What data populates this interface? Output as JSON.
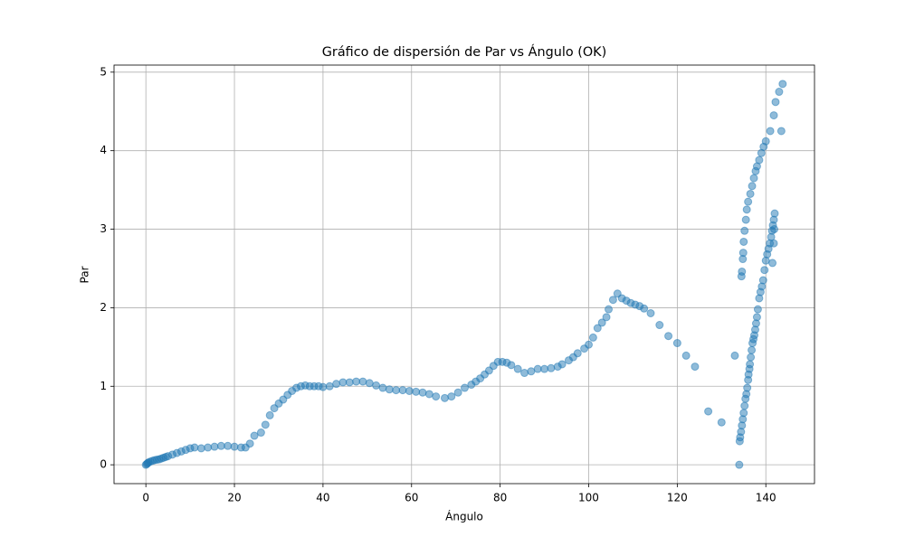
{
  "chart_data": {
    "type": "scatter",
    "title": "Gráfico de dispersión de Par vs Ángulo (OK)",
    "x_label": "Ángulo",
    "y_label": "Par",
    "color": "#1f77b4",
    "alpha": 0.5,
    "grid": true,
    "xlim": [
      -7.19,
      150.99
    ],
    "ylim": [
      -0.24,
      5.09
    ],
    "xticks": [
      0,
      20,
      40,
      60,
      80,
      100,
      120,
      140
    ],
    "yticks": [
      0,
      1,
      2,
      3,
      4,
      5
    ],
    "x": [
      0,
      0.2,
      0.4,
      0.6,
      1,
      1.5,
      2,
      2.5,
      3,
      3.5,
      4,
      4.5,
      5,
      6,
      7,
      8,
      9,
      10,
      11,
      12.5,
      14,
      15.5,
      17,
      18.5,
      20,
      21.5,
      22.5,
      23.5,
      24.5,
      26,
      27,
      28,
      29,
      30,
      31,
      32,
      33,
      34,
      35,
      36,
      37,
      38,
      39,
      40,
      41.5,
      43,
      44.5,
      46,
      47.5,
      49,
      50.5,
      52,
      53.5,
      55,
      56.5,
      58,
      59.5,
      61,
      62.5,
      64,
      65.5,
      67.5,
      69,
      70.5,
      72,
      73.5,
      74.5,
      75.5,
      76.5,
      77.5,
      78.5,
      79.5,
      80.5,
      81.5,
      82.5,
      84,
      85.5,
      87,
      88.5,
      90,
      91.5,
      93,
      94,
      95.5,
      96.5,
      97.5,
      99,
      100,
      101,
      102,
      103,
      104,
      104.5,
      105.5,
      106.5,
      107.5,
      108.5,
      109.5,
      110.5,
      111.5,
      112.5,
      114,
      116,
      118,
      120,
      122,
      124,
      127,
      130,
      133,
      134,
      134.1,
      134.2,
      134.4,
      134.6,
      134.8,
      135,
      135.2,
      135.4,
      135.6,
      135.8,
      136,
      136.1,
      136.3,
      136.4,
      136.6,
      136.8,
      137,
      137.2,
      137.4,
      137.6,
      137.8,
      138,
      138.2,
      138.5,
      138.8,
      139.1,
      139.4,
      139.7,
      140,
      140.3,
      140.6,
      140.9,
      141.2,
      141.4,
      141.6,
      141.8,
      142,
      141.9,
      141.8,
      141.5,
      134.5,
      134.6,
      134.8,
      134.9,
      135,
      135.2,
      135.5,
      135.7,
      136,
      136.5,
      136.9,
      137.3,
      137.7,
      138,
      138.5,
      139,
      139.5,
      140,
      141,
      141.8,
      142.2,
      143,
      143.8,
      143.5
    ],
    "y": [
      0,
      0.01,
      0.02,
      0.03,
      0.04,
      0.05,
      0.06,
      0.065,
      0.07,
      0.08,
      0.09,
      0.1,
      0.11,
      0.13,
      0.15,
      0.17,
      0.19,
      0.21,
      0.22,
      0.21,
      0.22,
      0.23,
      0.24,
      0.24,
      0.23,
      0.22,
      0.22,
      0.27,
      0.37,
      0.41,
      0.51,
      0.63,
      0.72,
      0.78,
      0.83,
      0.89,
      0.94,
      0.98,
      1.0,
      1.01,
      1.0,
      1.0,
      1.0,
      0.99,
      1.0,
      1.03,
      1.05,
      1.05,
      1.06,
      1.06,
      1.04,
      1.01,
      0.98,
      0.96,
      0.95,
      0.95,
      0.94,
      0.93,
      0.92,
      0.9,
      0.87,
      0.85,
      0.87,
      0.92,
      0.98,
      1.02,
      1.06,
      1.1,
      1.15,
      1.2,
      1.26,
      1.31,
      1.31,
      1.3,
      1.27,
      1.22,
      1.17,
      1.19,
      1.22,
      1.22,
      1.23,
      1.25,
      1.28,
      1.33,
      1.37,
      1.42,
      1.48,
      1.53,
      1.62,
      1.74,
      1.81,
      1.88,
      1.98,
      2.1,
      2.18,
      2.12,
      2.09,
      2.06,
      2.04,
      2.02,
      1.99,
      1.93,
      1.78,
      1.64,
      1.55,
      1.39,
      1.25,
      0.68,
      0.54,
      1.39,
      0,
      0.3,
      0.35,
      0.42,
      0.5,
      0.58,
      0.66,
      0.75,
      0.84,
      0.9,
      0.98,
      1.08,
      1.15,
      1.22,
      1.28,
      1.37,
      1.46,
      1.55,
      1.6,
      1.65,
      1.72,
      1.8,
      1.88,
      1.98,
      2.12,
      2.2,
      2.27,
      2.35,
      2.48,
      2.6,
      2.68,
      2.75,
      2.82,
      2.9,
      2.98,
      3.05,
      3.12,
      3.2,
      3.0,
      2.82,
      2.57,
      2.4,
      2.46,
      2.62,
      2.7,
      2.84,
      2.98,
      3.12,
      3.25,
      3.35,
      3.45,
      3.55,
      3.65,
      3.74,
      3.8,
      3.88,
      3.97,
      4.05,
      4.12,
      4.25,
      4.45,
      4.62,
      4.75,
      4.85,
      4.25
    ]
  }
}
